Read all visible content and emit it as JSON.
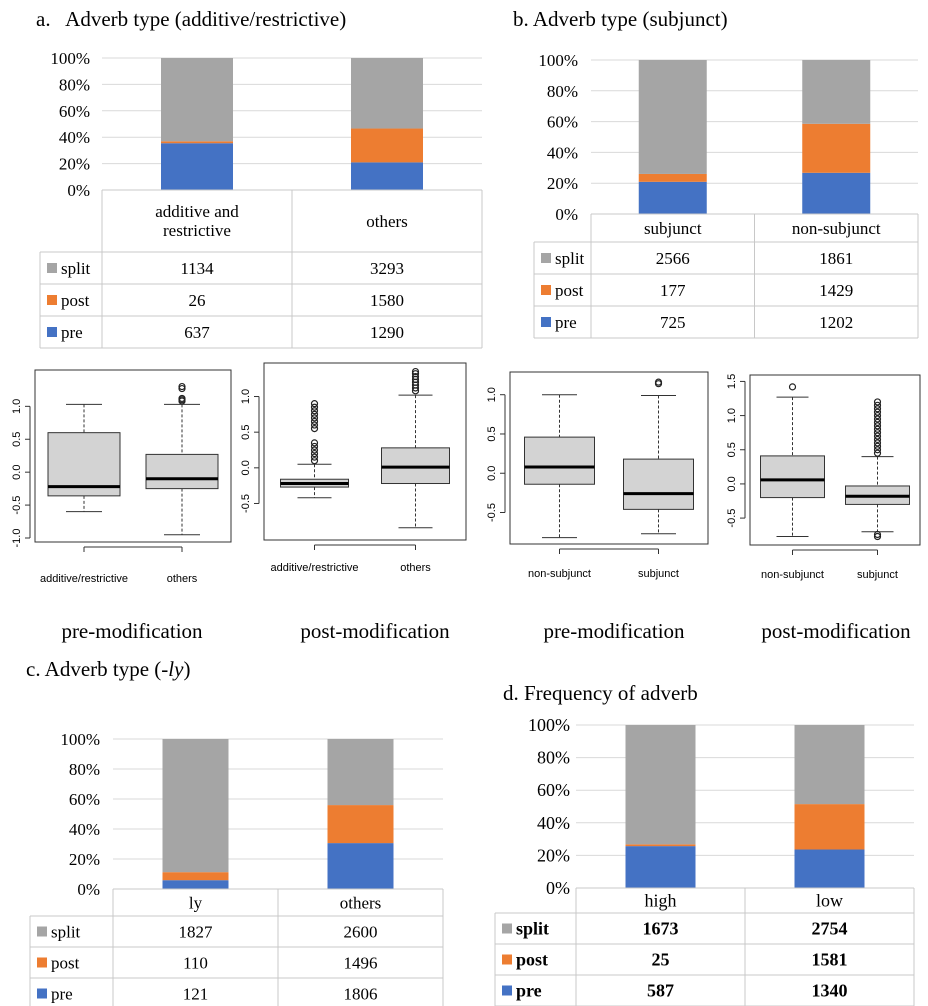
{
  "colors": {
    "split": "#a5a5a5",
    "post": "#ed7d31",
    "pre": "#4472c4",
    "grid": "#d9d9d9",
    "box": "#d3d3d3"
  },
  "labels": {
    "a_title": "a.   Adverb type (additive/restrictive)",
    "b_title": "b. Adverb type (subjunct)",
    "c_title_pre": "c. Adverb type (-",
    "c_title_it": "ly",
    "c_title_post": ")",
    "d_title": "d. Frequency of adverb",
    "b1_caption": "pre-modification",
    "b2_caption": "post-modification",
    "b3_caption": "pre-modification",
    "b4_caption": "post-modification"
  },
  "chart_data": [
    {
      "id": "a",
      "type": "bar",
      "stacked": "percent",
      "categories": [
        "additive and restrictive",
        "others"
      ],
      "series": [
        {
          "name": "split",
          "values": [
            1134,
            3293
          ]
        },
        {
          "name": "post",
          "values": [
            26,
            1580
          ]
        },
        {
          "name": "pre",
          "values": [
            637,
            1290
          ]
        }
      ],
      "yticks": [
        "0%",
        "20%",
        "40%",
        "60%",
        "80%",
        "100%"
      ],
      "ylim": [
        0,
        100
      ],
      "grid": true,
      "legend": "data-table"
    },
    {
      "id": "b",
      "type": "bar",
      "stacked": "percent",
      "categories": [
        "subjunct",
        "non-subjunct"
      ],
      "series": [
        {
          "name": "split",
          "values": [
            2566,
            1861
          ]
        },
        {
          "name": "post",
          "values": [
            177,
            1429
          ]
        },
        {
          "name": "pre",
          "values": [
            725,
            1202
          ]
        }
      ],
      "yticks": [
        "0%",
        "20%",
        "40%",
        "60%",
        "80%",
        "100%"
      ],
      "ylim": [
        0,
        100
      ],
      "grid": true,
      "legend": "data-table"
    },
    {
      "id": "c",
      "type": "bar",
      "stacked": "percent",
      "categories": [
        "ly",
        "others"
      ],
      "series": [
        {
          "name": "split",
          "values": [
            1827,
            2600
          ]
        },
        {
          "name": "post",
          "values": [
            110,
            1496
          ]
        },
        {
          "name": "pre",
          "values": [
            121,
            1806
          ]
        }
      ],
      "yticks": [
        "0%",
        "20%",
        "40%",
        "60%",
        "80%",
        "100%"
      ],
      "ylim": [
        0,
        100
      ],
      "grid": true,
      "legend": "data-table"
    },
    {
      "id": "d",
      "type": "bar",
      "stacked": "percent",
      "categories": [
        "high",
        "low"
      ],
      "series": [
        {
          "name": "split",
          "values": [
            1673,
            2754
          ]
        },
        {
          "name": "post",
          "values": [
            25,
            1581
          ]
        },
        {
          "name": "pre",
          "values": [
            587,
            1340
          ]
        }
      ],
      "yticks": [
        "0%",
        "20%",
        "40%",
        "60%",
        "80%",
        "100%"
      ],
      "ylim": [
        0,
        100
      ],
      "grid": true,
      "legend": "data-table"
    },
    {
      "id": "box1",
      "type": "box",
      "categories": [
        "additive/restrictive",
        "others"
      ],
      "ylim": [
        -1.0,
        1.4
      ],
      "yticks": [
        -1.0,
        -0.5,
        0.0,
        0.5,
        1.0
      ],
      "ytick_labels": [
        "-1.0",
        "-0.5",
        "0.0",
        "0.5",
        "1.0"
      ],
      "boxes": [
        {
          "min": -0.6,
          "q1": -0.36,
          "median": -0.22,
          "q3": 0.6,
          "max": 1.03,
          "outliers": []
        },
        {
          "min": -0.95,
          "q1": -0.25,
          "median": -0.1,
          "q3": 0.27,
          "max": 1.03,
          "outliers": [
            1.08,
            1.1,
            1.12,
            1.27,
            1.3
          ]
        }
      ]
    },
    {
      "id": "box2",
      "type": "box",
      "categories": [
        "additive/restrictive",
        "others"
      ],
      "ylim": [
        -0.9,
        1.4
      ],
      "yticks": [
        -0.5,
        0.0,
        0.5,
        1.0
      ],
      "ytick_labels": [
        "-0.5",
        "0.0",
        "0.5",
        "1.0"
      ],
      "boxes": [
        {
          "min": -0.42,
          "q1": -0.27,
          "median": -0.22,
          "q3": -0.16,
          "max": 0.05,
          "outliers": [
            0.1,
            0.15,
            0.2,
            0.25,
            0.3,
            0.35,
            0.55,
            0.6,
            0.65,
            0.7,
            0.75,
            0.8,
            0.85,
            0.9
          ]
        },
        {
          "min": -0.84,
          "q1": -0.22,
          "median": 0.01,
          "q3": 0.28,
          "max": 1.02,
          "outliers": [
            1.08,
            1.12,
            1.16,
            1.2,
            1.24,
            1.28,
            1.32,
            1.35
          ]
        }
      ]
    },
    {
      "id": "box3",
      "type": "box",
      "categories": [
        "non-subjunct",
        "subjunct"
      ],
      "ylim": [
        -0.85,
        1.2
      ],
      "yticks": [
        -0.5,
        0.0,
        0.5,
        1.0
      ],
      "ytick_labels": [
        "-0.5",
        "0.0",
        "0.5",
        "1.0"
      ],
      "boxes": [
        {
          "min": -0.82,
          "q1": -0.14,
          "median": 0.08,
          "q3": 0.46,
          "max": 1.0,
          "outliers": []
        },
        {
          "min": -0.77,
          "q1": -0.46,
          "median": -0.26,
          "q3": 0.18,
          "max": 0.99,
          "outliers": [
            1.14,
            1.16
          ]
        }
      ]
    },
    {
      "id": "box4",
      "type": "box",
      "categories": [
        "non-subjunct",
        "subjunct"
      ],
      "ylim": [
        -0.85,
        1.55
      ],
      "yticks": [
        -0.5,
        0.0,
        0.5,
        1.0,
        1.5
      ],
      "ytick_labels": [
        "-0.5",
        "0.0",
        "0.5",
        "1.0",
        "1.5"
      ],
      "boxes": [
        {
          "min": -0.77,
          "q1": -0.2,
          "median": 0.06,
          "q3": 0.41,
          "max": 1.27,
          "outliers": [
            1.42
          ]
        },
        {
          "min": -0.7,
          "q1": -0.3,
          "median": -0.18,
          "q3": -0.03,
          "max": 0.4,
          "outliers": [
            0.45,
            0.5,
            0.55,
            0.6,
            0.65,
            0.7,
            0.75,
            0.8,
            0.85,
            0.9,
            0.95,
            1.0,
            1.05,
            1.1,
            1.15,
            1.2,
            -0.74,
            -0.77
          ]
        }
      ]
    }
  ]
}
